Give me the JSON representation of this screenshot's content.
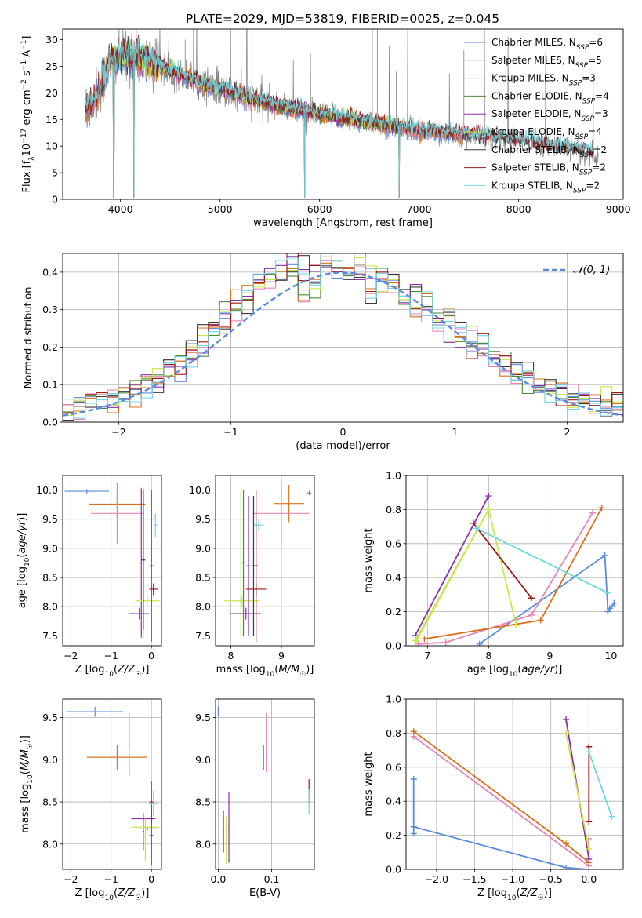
{
  "title": "PLATE=2029, MJD=53819, FIBERID=0025, z=0.045",
  "colors": {
    "Chabrier MILES": "#5b8bdc",
    "Salpeter MILES": "#e884b8",
    "Kroupa MILES": "#d8701e",
    "Chabrier ELODIE": "#4d8a3a",
    "Salpeter ELODIE": "#8b2fae",
    "Kroupa ELODIE": "#c8e84a",
    "Chabrier STELIB": "#3a3a3a",
    "Salpeter STELIB": "#a01818",
    "Kroupa STELIB": "#72d8e0",
    "data": "#808080",
    "normal": "#5b8bdc"
  },
  "chart_data": [
    {
      "id": "spectrum",
      "type": "line",
      "xlabel": "wavelength [Angstrom, rest frame]",
      "ylabel": "Flux [f_λ 10^{-17} erg cm^{-2} s^{-1} A^{-1}]",
      "xlim": [
        3420,
        9050
      ],
      "ylim": [
        0,
        32
      ],
      "xticks": [
        4000,
        5000,
        6000,
        7000,
        8000,
        9000
      ],
      "yticks": [
        0,
        5,
        10,
        15,
        20,
        25,
        30
      ],
      "legend_position": "upper right",
      "legend": [
        {
          "model": "Chabrier MILES",
          "label": "Chabrier MILES, N",
          "sub": "SSP",
          "tail": "=6"
        },
        {
          "model": "Salpeter MILES",
          "label": "Salpeter MILES, N",
          "sub": "SSP",
          "tail": "=5"
        },
        {
          "model": "Kroupa MILES",
          "label": "Kroupa MILES, N",
          "sub": "SSP",
          "tail": "=3"
        },
        {
          "model": "Chabrier ELODIE",
          "label": "Chabrier ELODIE, N",
          "sub": "SSP",
          "tail": "=4"
        },
        {
          "model": "Salpeter ELODIE",
          "label": "Salpeter ELODIE, N",
          "sub": "SSP",
          "tail": "=3"
        },
        {
          "model": "Kroupa ELODIE",
          "label": "Kroupa ELODIE, N",
          "sub": "SSP",
          "tail": "=4"
        },
        {
          "model": "Chabrier STELIB",
          "label": "Chabrier STELIB, N",
          "sub": "SSP",
          "tail": "=2"
        },
        {
          "model": "Salpeter STELIB",
          "label": "Salpeter STELIB, N",
          "sub": "SSP",
          "tail": "=2"
        },
        {
          "model": "Kroupa STELIB",
          "label": "Kroupa STELIB, N",
          "sub": "SSP",
          "tail": "=2"
        }
      ],
      "continuum": [
        [
          3650,
          17
        ],
        [
          3750,
          19
        ],
        [
          3900,
          26
        ],
        [
          4100,
          27
        ],
        [
          4400,
          25
        ],
        [
          4800,
          22
        ],
        [
          5200,
          19.5
        ],
        [
          5600,
          17.5
        ],
        [
          6000,
          16
        ],
        [
          6500,
          14.5
        ],
        [
          7000,
          13
        ],
        [
          7500,
          12
        ],
        [
          8000,
          11
        ],
        [
          8500,
          9.5
        ],
        [
          8800,
          8.5
        ]
      ],
      "model_ranges": {
        "MILES": [
          3650,
          7430
        ],
        "ELODIE": [
          3900,
          6800
        ],
        "STELIB": [
          3650,
          8750
        ]
      },
      "model_dips": [
        [
          3933,
          0.5
        ],
        [
          4135,
          0.5
        ],
        [
          5850,
          0.5
        ],
        [
          6800,
          0.5
        ]
      ]
    },
    {
      "id": "residuals",
      "type": "step",
      "xlabel": "(data-model)/error",
      "ylabel": "Normed distribution",
      "xlim": [
        -2.5,
        2.5
      ],
      "ylim": [
        0,
        0.45
      ],
      "xticks": [
        -2,
        -1,
        0,
        1,
        2
      ],
      "yticks": [
        0.0,
        0.1,
        0.2,
        0.3,
        0.4
      ],
      "legend_position": "upper right",
      "legend_label": "𝒩(0, 1)",
      "bin_width": 0.1
    },
    {
      "id": "age_vs_Z",
      "type": "errorbar",
      "xlabel": "Z [log₁₀(Z/Z☉)]",
      "ylabel": "age  [log₁₀(age/yr)]",
      "xlim": [
        -2.2,
        0.25
      ],
      "ylim": [
        7.33,
        10.25
      ],
      "xticks": [
        -2,
        -1,
        0
      ],
      "yticks": [
        7.5,
        8.0,
        8.5,
        9.0,
        9.5,
        10.0
      ],
      "points": [
        {
          "model": "Chabrier MILES",
          "x": -1.6,
          "xerr": 0.55,
          "y": 9.98,
          "yerr": 0.04
        },
        {
          "model": "Kroupa MILES",
          "x": -0.85,
          "xerr": 0.7,
          "y": 9.76,
          "yerr": 0.22
        },
        {
          "model": "Salpeter MILES",
          "x": -0.85,
          "xerr": 0.65,
          "y": 9.6,
          "yerr": 0.52
        },
        {
          "model": "Salpeter ELODIE",
          "x": -0.25,
          "xerr": 0.05,
          "y": 8.75,
          "yerr": 1.28
        },
        {
          "model": "Salpeter ELODIE",
          "x": -0.3,
          "xerr": 0.25,
          "y": 7.88,
          "yerr": 0.1
        },
        {
          "model": "Kroupa STELIB",
          "x": 0.1,
          "xerr": 0.05,
          "y": 9.4,
          "yerr": 0.2
        },
        {
          "model": "Kroupa ELODIE",
          "x": -0.2,
          "xerr": 0.05,
          "y": 8.75,
          "yerr": 1.3
        },
        {
          "model": "Kroupa ELODIE",
          "x": -0.1,
          "xerr": 0.3,
          "y": 8.1,
          "yerr": 0.1
        },
        {
          "model": "Salpeter STELIB",
          "x": 0.0,
          "xerr": 0.05,
          "y": 8.7,
          "yerr": 1.3
        },
        {
          "model": "Salpeter STELIB",
          "x": 0.05,
          "xerr": 0.1,
          "y": 8.3,
          "yerr": 0.1
        },
        {
          "model": "Chabrier STELIB",
          "x": -0.2,
          "xerr": 0.05,
          "y": 8.8,
          "yerr": 1.2
        }
      ]
    },
    {
      "id": "age_vs_mass",
      "type": "errorbar",
      "xlabel": "mass [log₁₀(M/M☉)]",
      "ylabel": "",
      "xlim": [
        7.7,
        9.65
      ],
      "ylim": [
        7.33,
        10.25
      ],
      "xticks": [
        8,
        9
      ],
      "yticks": [
        7.5,
        8.0,
        8.5,
        9.0,
        9.5,
        10.0
      ],
      "points": [
        {
          "model": "Chabrier MILES",
          "x": 9.55,
          "xerr": 0.04,
          "y": 9.95,
          "yerr": 0.04
        },
        {
          "model": "Kroupa MILES",
          "x": 9.15,
          "xerr": 0.3,
          "y": 9.77,
          "yerr": 0.32
        },
        {
          "model": "Salpeter MILES",
          "x": 9.0,
          "xerr": 0.55,
          "y": 9.6,
          "yerr": 0.55
        },
        {
          "model": "Kroupa STELIB",
          "x": 8.55,
          "xerr": 0.1,
          "y": 9.4,
          "yerr": 0.1
        },
        {
          "model": "Kroupa ELODIE",
          "x": 8.22,
          "xerr": 0.35,
          "y": 8.1,
          "yerr": 0.1
        },
        {
          "model": "Kroupa ELODIE",
          "x": 8.2,
          "xerr": 0.04,
          "y": 8.75,
          "yerr": 1.28
        },
        {
          "model": "Chabrier ELODIE",
          "x": 8.25,
          "xerr": 0.04,
          "y": 8.75,
          "yerr": 1.25
        },
        {
          "model": "Salpeter ELODIE",
          "x": 8.3,
          "xerr": 0.3,
          "y": 7.88,
          "yerr": 0.1
        },
        {
          "model": "Salpeter ELODIE",
          "x": 8.35,
          "xerr": 0.04,
          "y": 8.7,
          "yerr": 1.2
        },
        {
          "model": "Salpeter STELIB",
          "x": 8.5,
          "xerr": 0.2,
          "y": 8.3,
          "yerr": 0.1
        },
        {
          "model": "Salpeter STELIB",
          "x": 8.5,
          "xerr": 0.04,
          "y": 8.7,
          "yerr": 1.3
        },
        {
          "model": "Chabrier STELIB",
          "x": 8.45,
          "xerr": 0.04,
          "y": 8.7,
          "yerr": 1.2
        }
      ]
    },
    {
      "id": "weight_vs_age",
      "type": "line",
      "xlabel": "age  [log₁₀(age/yr)]",
      "ylabel": "mass weight",
      "xlim": [
        6.65,
        10.2
      ],
      "ylim": [
        0,
        1.0
      ],
      "xticks": [
        7,
        8,
        9,
        10
      ],
      "yticks": [
        0.0,
        0.2,
        0.4,
        0.6,
        0.8,
        1.0
      ],
      "series": [
        {
          "model": "Chabrier MILES",
          "x": [
            7.85,
            9.9,
            9.95,
            10.05,
            9.98
          ],
          "y": [
            0.01,
            0.53,
            0.2,
            0.25,
            0.22
          ]
        },
        {
          "model": "Salpeter MILES",
          "x": [
            6.85,
            7.3,
            8.7,
            9.7
          ],
          "y": [
            0.01,
            0.02,
            0.18,
            0.78
          ]
        },
        {
          "model": "Kroupa MILES",
          "x": [
            6.95,
            8.85,
            9.85
          ],
          "y": [
            0.04,
            0.15,
            0.81
          ]
        },
        {
          "model": "Salpeter ELODIE",
          "x": [
            6.8,
            8.0
          ],
          "y": [
            0.06,
            0.88
          ]
        },
        {
          "model": "Kroupa ELODIE",
          "x": [
            6.8,
            8.0,
            8.45,
            8.0,
            6.82
          ],
          "y": [
            0.03,
            0.8,
            0.12,
            0.8,
            0.03
          ]
        },
        {
          "model": "Salpeter STELIB",
          "x": [
            7.75,
            8.7
          ],
          "y": [
            0.72,
            0.28
          ]
        },
        {
          "model": "Kroupa STELIB",
          "x": [
            7.8,
            9.95
          ],
          "y": [
            0.69,
            0.31
          ]
        }
      ]
    },
    {
      "id": "mass_vs_Z",
      "type": "errorbar",
      "xlabel": "Z [log₁₀(Z/Z☉)]",
      "ylabel": "mass [log₁₀(M/M☉)]",
      "xlim": [
        -2.2,
        0.25
      ],
      "ylim": [
        7.7,
        9.72
      ],
      "xticks": [
        -2,
        -1,
        0
      ],
      "yticks": [
        8.0,
        8.5,
        9.0,
        9.5
      ],
      "points": [
        {
          "model": "Chabrier MILES",
          "x": -1.4,
          "xerr": 0.7,
          "y": 9.57,
          "yerr": 0.06
        },
        {
          "model": "Kroupa MILES",
          "x": -0.85,
          "xerr": 0.75,
          "y": 9.03,
          "yerr": 0.15
        },
        {
          "model": "Salpeter MILES",
          "x": -0.55,
          "xerr": 0.02,
          "y": 9.18,
          "yerr": 0.37
        },
        {
          "model": "Salpeter ELODIE",
          "x": -0.2,
          "xerr": 0.3,
          "y": 8.3,
          "yerr": 0.02
        },
        {
          "model": "Salpeter ELODIE",
          "x": -0.2,
          "xerr": 0.02,
          "y": 8.15,
          "yerr": 0.22
        },
        {
          "model": "Kroupa ELODIE",
          "x": -0.15,
          "xerr": 0.02,
          "y": 8.05,
          "yerr": 0.25
        },
        {
          "model": "Kroupa ELODIE",
          "x": -0.15,
          "xerr": 0.35,
          "y": 8.2,
          "yerr": 0.02
        },
        {
          "model": "Chabrier ELODIE",
          "x": -0.1,
          "xerr": 0.3,
          "y": 8.18,
          "yerr": 0.02
        },
        {
          "model": "Salpeter STELIB",
          "x": 0.0,
          "xerr": 0.05,
          "y": 8.5,
          "yerr": 0.25
        },
        {
          "model": "Chabrier STELIB",
          "x": 0.0,
          "xerr": 0.05,
          "y": 8.1,
          "yerr": 0.35
        },
        {
          "model": "Kroupa STELIB",
          "x": 0.05,
          "xerr": 0.1,
          "y": 8.48,
          "yerr": 0.15
        }
      ]
    },
    {
      "id": "mass_vs_EBV",
      "type": "errorbar",
      "xlabel": "E(B-V)",
      "ylabel": "",
      "xlim": [
        -0.005,
        0.18
      ],
      "ylim": [
        7.7,
        9.72
      ],
      "xticks": [
        0.0,
        0.1
      ],
      "yticks": [
        8.0,
        8.5,
        9.0,
        9.5
      ],
      "points": [
        {
          "model": "Chabrier MILES",
          "x": 0.0,
          "y": 9.57,
          "yerr": 0.06
        },
        {
          "model": "Kroupa MILES",
          "x": 0.085,
          "y": 9.03,
          "yerr": 0.15
        },
        {
          "model": "Salpeter MILES",
          "x": 0.09,
          "y": 9.2,
          "yerr": 0.35
        },
        {
          "model": "Salpeter ELODIE",
          "x": 0.02,
          "y": 8.2,
          "yerr": 0.42
        },
        {
          "model": "Kroupa ELODIE",
          "x": 0.015,
          "y": 8.05,
          "yerr": 0.28
        },
        {
          "model": "Chabrier ELODIE",
          "x": 0.01,
          "y": 8.15,
          "yerr": 0.25
        },
        {
          "model": "Salpeter STELIB",
          "x": 0.17,
          "y": 8.62,
          "yerr": 0.15
        },
        {
          "model": "Kroupa STELIB",
          "x": 0.17,
          "y": 8.5,
          "yerr": 0.15
        }
      ]
    },
    {
      "id": "weight_vs_Z",
      "type": "line",
      "xlabel": "Z [log₁₀(Z/Z☉)]",
      "ylabel": "mass weight",
      "xlim": [
        -2.4,
        0.45
      ],
      "ylim": [
        0,
        1.0
      ],
      "xticks": [
        -2.0,
        -1.5,
        -1.0,
        -0.5,
        0.0
      ],
      "yticks": [
        0.0,
        0.2,
        0.4,
        0.6,
        0.8,
        1.0
      ],
      "series": [
        {
          "model": "Chabrier MILES",
          "x": [
            -2.3,
            -2.3,
            -2.3,
            -0.3,
            0.0
          ],
          "y": [
            0.53,
            0.21,
            0.25,
            0.01,
            0.0
          ]
        },
        {
          "model": "Salpeter MILES",
          "x": [
            -2.3,
            0.0,
            0.0
          ],
          "y": [
            0.78,
            0.02,
            0.18
          ]
        },
        {
          "model": "Kroupa MILES",
          "x": [
            -2.3,
            -0.3,
            0.0
          ],
          "y": [
            0.81,
            0.15,
            0.04
          ]
        },
        {
          "model": "Salpeter ELODIE",
          "x": [
            -0.3,
            0.0
          ],
          "y": [
            0.88,
            0.06
          ]
        },
        {
          "model": "Kroupa ELODIE",
          "x": [
            -0.3,
            0.0
          ],
          "y": [
            0.8,
            0.12
          ]
        },
        {
          "model": "Salpeter STELIB",
          "x": [
            0.0,
            0.0
          ],
          "y": [
            0.72,
            0.28
          ]
        },
        {
          "model": "Kroupa STELIB",
          "x": [
            0.0,
            0.3
          ],
          "y": [
            0.69,
            0.31
          ]
        }
      ]
    }
  ]
}
